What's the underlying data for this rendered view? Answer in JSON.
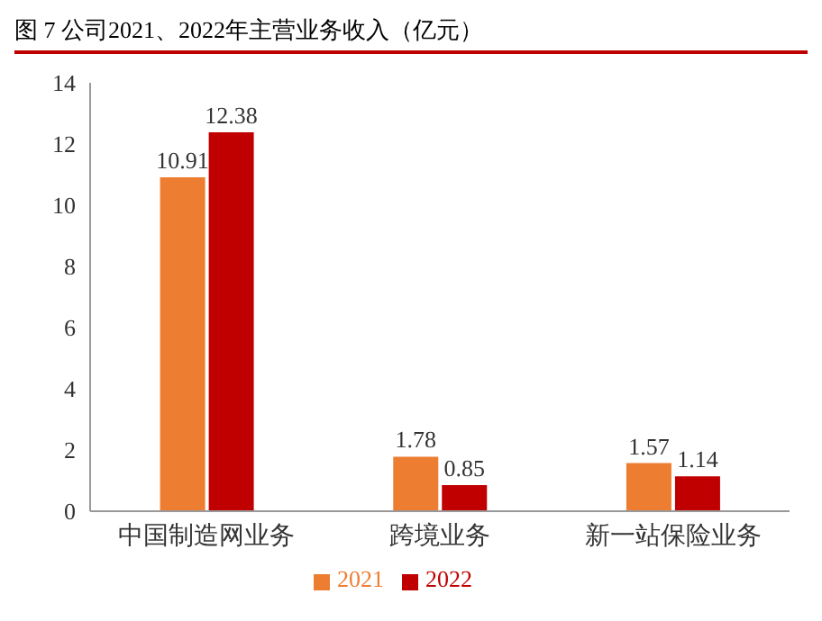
{
  "chart_data": {
    "type": "bar",
    "title": "图 7 公司2021、2022年主营业务收入（亿元）",
    "categories": [
      "中国制造网业务",
      "跨境业务",
      "新一站保险业务"
    ],
    "series": [
      {
        "name": "2021",
        "color": "#ed7d31",
        "values": [
          10.91,
          1.78,
          1.57
        ]
      },
      {
        "name": "2022",
        "color": "#c00000",
        "values": [
          12.38,
          0.85,
          1.14
        ]
      }
    ],
    "ylim": [
      0,
      14
    ],
    "yticks": [
      0,
      2,
      4,
      6,
      8,
      10,
      12,
      14
    ],
    "grid": false,
    "legend": "bottom",
    "data_labels": true
  }
}
